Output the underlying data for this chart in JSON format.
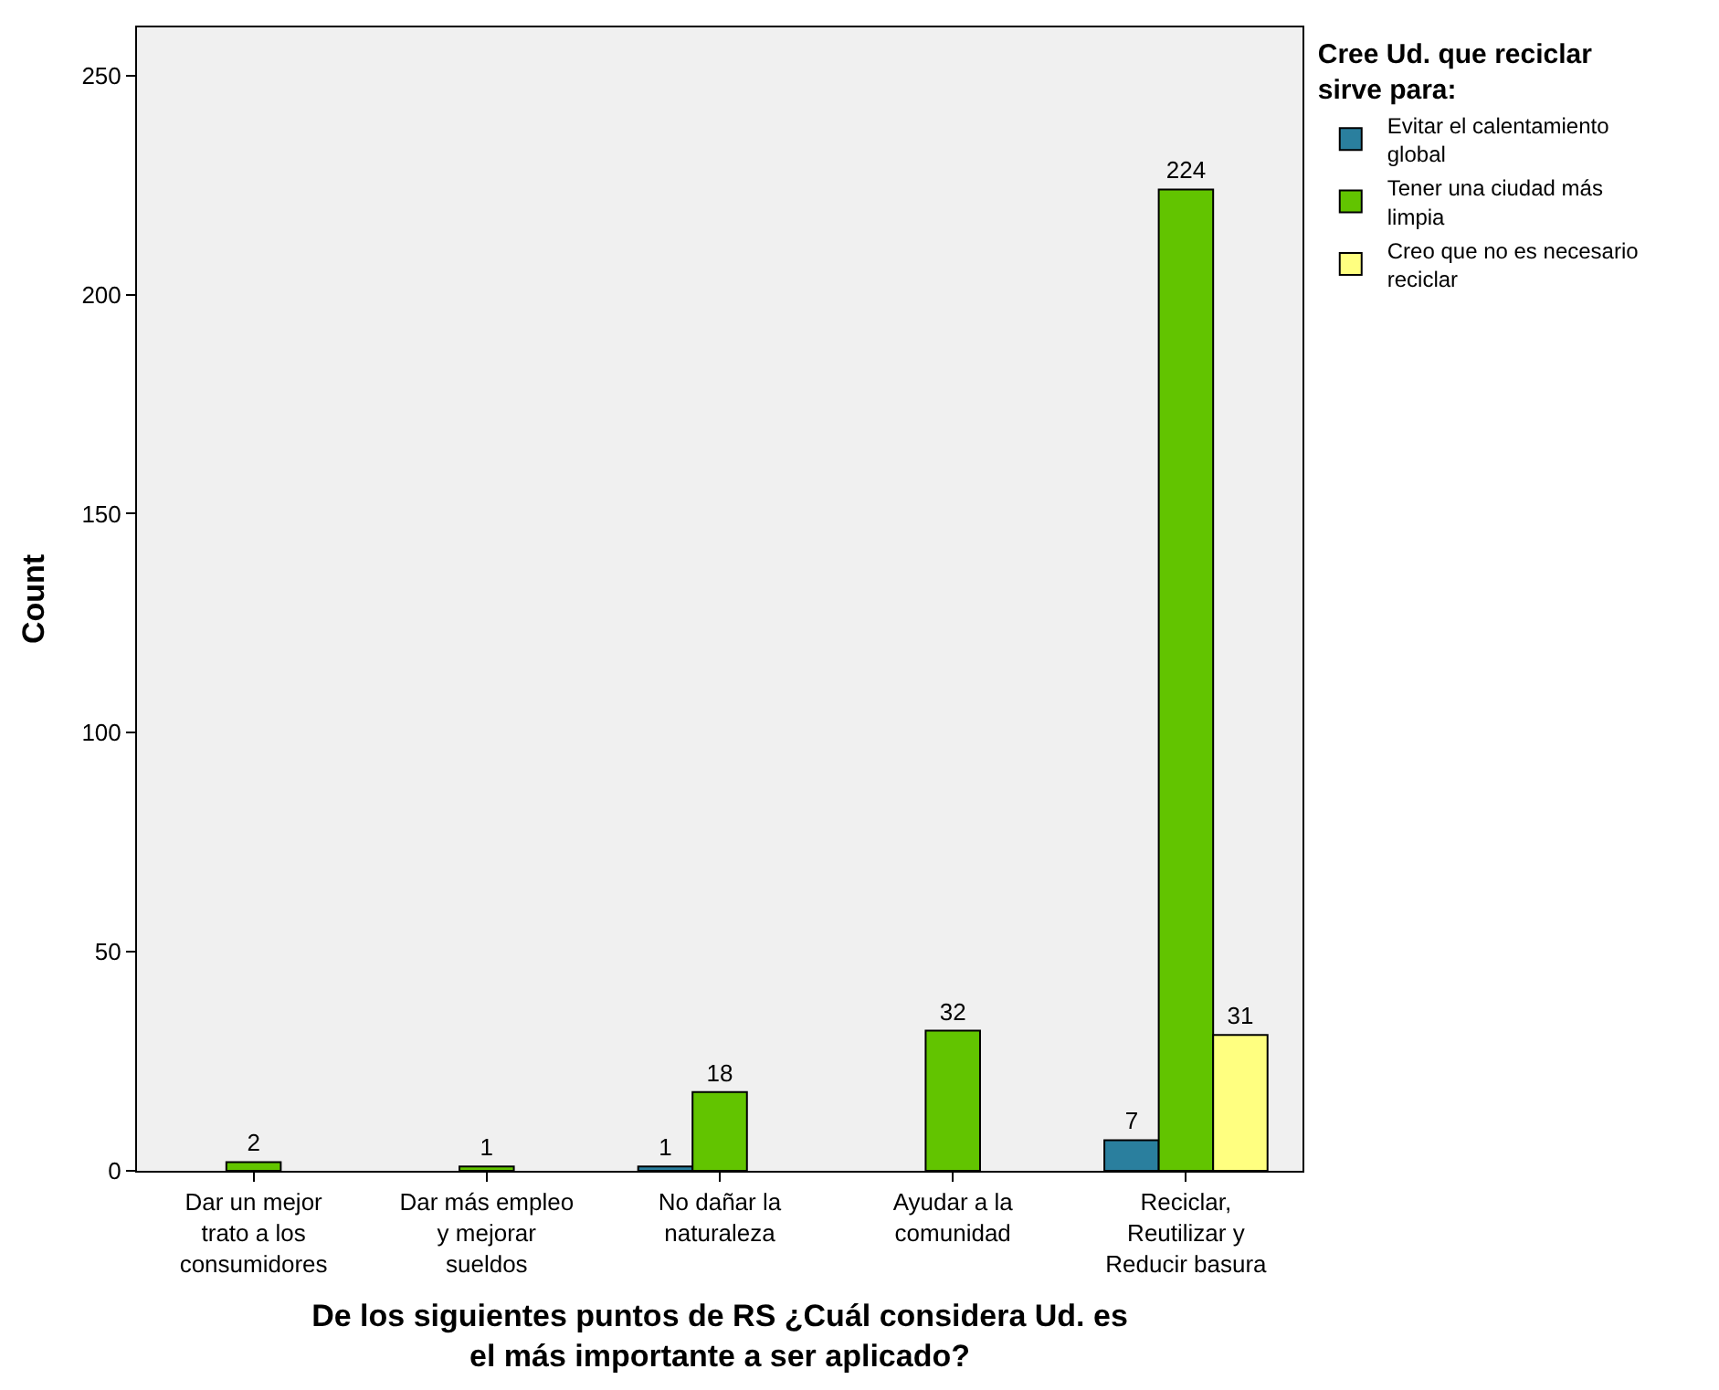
{
  "chart_data": {
    "type": "bar",
    "xlabel": "De los siguientes puntos de RS ¿Cuál considera Ud. es el más importante a ser aplicado?",
    "ylabel": "Count",
    "legend_title": "Cree Ud. que reciclar sirve para:",
    "categories": [
      "Dar un mejor trato a los consumidores",
      "Dar más empleo y mejorar sueldos",
      "No dañar la naturaleza",
      "Ayudar a la comunidad",
      "Reciclar, Reutilizar y Reducir basura"
    ],
    "series": [
      {
        "name": "Evitar el calentamiento global",
        "color": "#2a7f9e",
        "values": [
          null,
          null,
          1,
          null,
          7
        ]
      },
      {
        "name": "Tener una ciudad más limpia",
        "color": "#62c400",
        "values": [
          2,
          1,
          18,
          32,
          224
        ]
      },
      {
        "name": "Creo que no es necesario reciclar",
        "color": "#ffff80",
        "values": [
          null,
          null,
          null,
          null,
          31
        ]
      }
    ],
    "ylim": [
      0,
      261
    ],
    "yticks": [
      0,
      50,
      100,
      150,
      200,
      250
    ],
    "grid": false,
    "legend": "top right",
    "data_labels": true
  }
}
